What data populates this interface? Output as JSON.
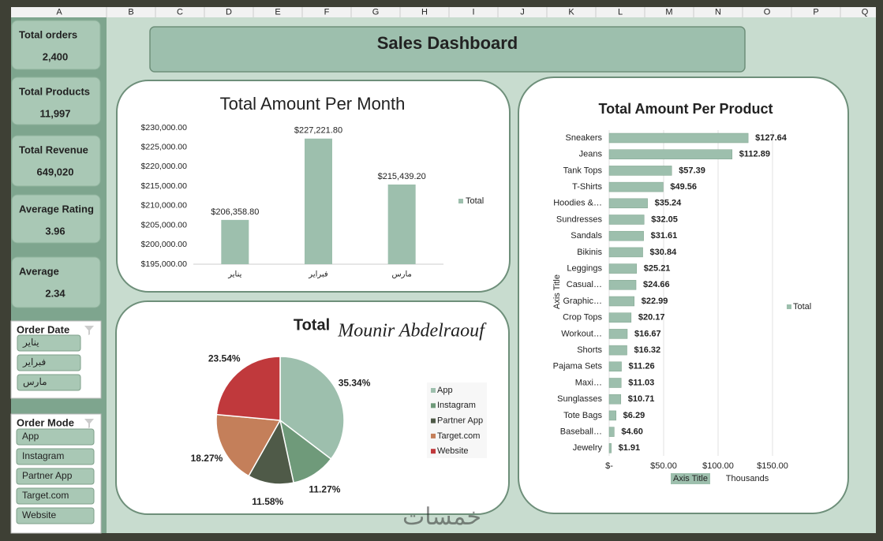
{
  "columns": [
    "A",
    "B",
    "C",
    "D",
    "E",
    "F",
    "G",
    "H",
    "I",
    "J",
    "K",
    "L",
    "M",
    "N",
    "O",
    "P",
    "Q"
  ],
  "header": {
    "title": "Sales Dashboard"
  },
  "kpis": [
    {
      "label": "Total orders",
      "value": "2,400"
    },
    {
      "label": "Total Products",
      "value": "11,997"
    },
    {
      "label": "Total Revenue",
      "value": "649,020"
    },
    {
      "label": "Average Rating",
      "value": "3.96"
    },
    {
      "label": "Average",
      "value": "2.34"
    }
  ],
  "slicers": [
    {
      "title": "Order Date",
      "items": [
        "يناير",
        "فبراير",
        "مارس"
      ]
    },
    {
      "title": "Order Mode",
      "items": [
        "App",
        "Instagram",
        "Partner App",
        "Target.com",
        "Website"
      ]
    }
  ],
  "watermark": "خمسات",
  "chart_data": [
    {
      "type": "bar",
      "title": "Total Amount Per Month",
      "categories": [
        "يناير",
        "فبراير",
        "مارس"
      ],
      "series": [
        {
          "name": "Total",
          "color": "#9dbfad",
          "values": [
            206358.8,
            227221.8,
            215439.2
          ],
          "value_labels": [
            "$206,358.80",
            "$227,221.80",
            "$215,439.20"
          ]
        }
      ],
      "ylim": [
        195000,
        230000
      ],
      "yticks": [
        {
          "value": 195000,
          "label": "$195,000.00"
        },
        {
          "value": 200000,
          "label": "$200,000.00"
        },
        {
          "value": 205000,
          "label": "$205,000.00"
        },
        {
          "value": 210000,
          "label": "$210,000.00"
        },
        {
          "value": 215000,
          "label": "$215,000.00"
        },
        {
          "value": 220000,
          "label": "$220,000.00"
        },
        {
          "value": 225000,
          "label": "$225,000.00"
        },
        {
          "value": 230000,
          "label": "$230,000.00"
        }
      ],
      "grid": false,
      "legend": "right"
    },
    {
      "type": "bar",
      "orientation": "horizontal",
      "title": "Total Amount Per Product",
      "categories": [
        "Sneakers",
        "Jeans",
        "Tank Tops",
        "T-Shirts",
        "Hoodies &…",
        "Sundresses",
        "Sandals",
        "Bikinis",
        "Leggings",
        "Casual…",
        "Graphic…",
        "Crop Tops",
        "Workout…",
        "Shorts",
        "Pajama Sets",
        "Maxi…",
        "Sunglasses",
        "Tote Bags",
        "Baseball…",
        "Jewelry"
      ],
      "series": [
        {
          "name": "Total",
          "color": "#9dbfad",
          "values": [
            127.64,
            112.89,
            57.39,
            49.56,
            35.24,
            32.05,
            31.61,
            30.84,
            25.21,
            24.66,
            22.99,
            20.17,
            16.67,
            16.32,
            11.26,
            11.03,
            10.71,
            6.29,
            4.6,
            1.91
          ],
          "value_labels": [
            "$127.64",
            "$112.89",
            "$57.39",
            "$49.56",
            "$35.24",
            "$32.05",
            "$31.61",
            "$30.84",
            "$25.21",
            "$24.66",
            "$22.99",
            "$20.17",
            "$16.67",
            "$16.32",
            "$11.26",
            "$11.03",
            "$10.71",
            "$6.29",
            "$4.60",
            "$1.91"
          ]
        }
      ],
      "xlim": [
        0,
        150
      ],
      "xticks": [
        {
          "value": 0,
          "label": "$-"
        },
        {
          "value": 50,
          "label": "$50.00"
        },
        {
          "value": 100,
          "label": "$100.00"
        },
        {
          "value": 150,
          "label": "$150.00"
        }
      ],
      "x_label": "Axis Title",
      "y_label": "Axis Title",
      "x_unit": "Thousands",
      "grid": true,
      "legend": "right"
    },
    {
      "type": "pie",
      "title": "Total",
      "annotation": "Mounir Abdelraouf",
      "categories": [
        "App",
        "Instagram",
        "Partner App",
        "Target.com",
        "Website"
      ],
      "values": [
        35.34,
        11.27,
        11.58,
        18.27,
        23.54
      ],
      "value_labels": [
        "35.34%",
        "11.27%",
        "11.58%",
        "18.27%",
        "23.54%"
      ],
      "colors": [
        "#9dbfad",
        "#6f9a7a",
        "#4f5a48",
        "#c47f5a",
        "#c0393c"
      ],
      "legend": "right"
    }
  ]
}
